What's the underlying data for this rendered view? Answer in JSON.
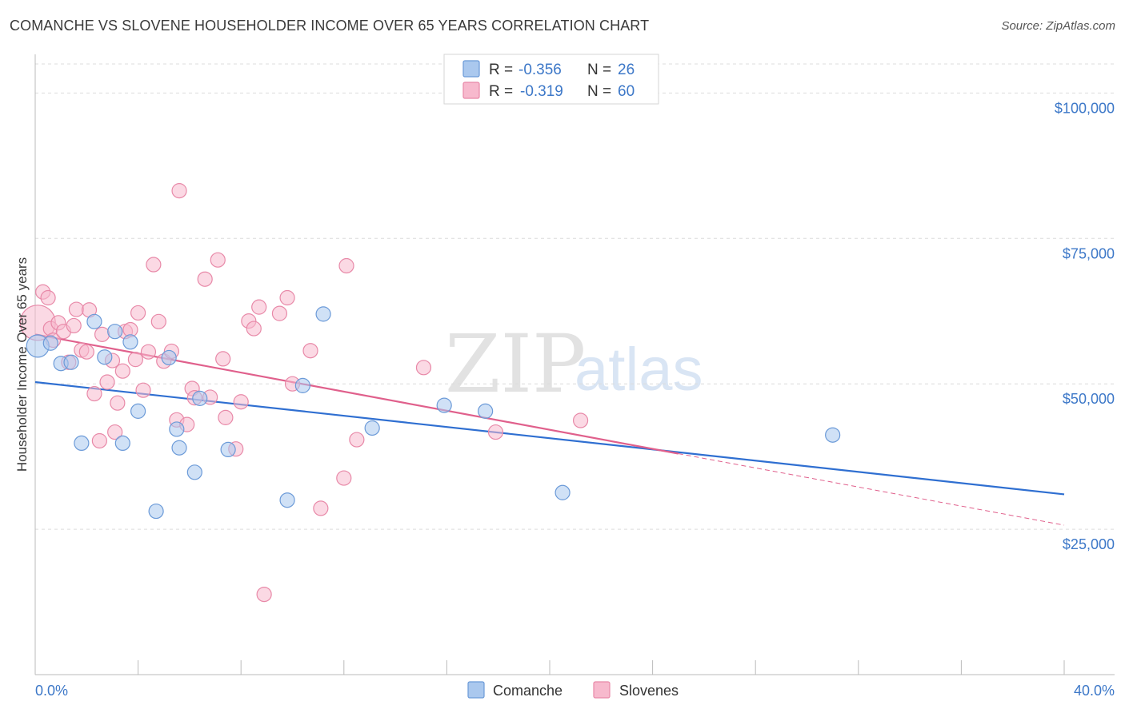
{
  "title": "COMANCHE VS SLOVENE HOUSEHOLDER INCOME OVER 65 YEARS CORRELATION CHART",
  "source": "Source: ZipAtlas.com",
  "watermark": {
    "zip": "ZIP",
    "atlas": "atlas"
  },
  "legend": {
    "rows": [
      {
        "r_label": "R =",
        "r_value": "-0.356",
        "n_label": "N =",
        "n_value": "26"
      },
      {
        "r_label": "R =",
        "r_value": "-0.319",
        "n_label": "N =",
        "n_value": "60"
      }
    ]
  },
  "bottom_legend": [
    "Comanche",
    "Slovenes"
  ],
  "colors": {
    "comanche_fill": "#aac8ee",
    "comanche_stroke": "#6b9ad8",
    "comanche_line": "#2f6fd1",
    "slovene_fill": "#f7b9cd",
    "slovene_stroke": "#e889a8",
    "slovene_line": "#e0608c",
    "grid": "#dcdcdc",
    "axis_text": "#3d78c8"
  },
  "chart_data": {
    "type": "scatter",
    "title": "COMANCHE VS SLOVENE HOUSEHOLDER INCOME OVER 65 YEARS CORRELATION CHART",
    "xlabel": "",
    "ylabel": "Householder Income Over 65 years",
    "xlim": [
      0,
      40
    ],
    "ylim": [
      0,
      105000
    ],
    "x_tick_labels": [
      "0.0%",
      "40.0%"
    ],
    "y_ticks": [
      25000,
      50000,
      75000,
      100000
    ],
    "y_tick_labels": [
      "$25,000",
      "$50,000",
      "$75,000",
      "$100,000"
    ],
    "grid": "horizontal dashed",
    "legend_position": "top-center",
    "series": [
      {
        "name": "Comanche",
        "r": -0.356,
        "n": 26,
        "trend": {
          "x": [
            0,
            40
          ],
          "y": [
            50300,
            31000
          ]
        },
        "points": [
          [
            0.1,
            56500,
            14
          ],
          [
            0.6,
            57000,
            9
          ],
          [
            1.0,
            53500,
            9
          ],
          [
            1.4,
            53700,
            9
          ],
          [
            1.8,
            39800,
            9
          ],
          [
            2.3,
            60700,
            9
          ],
          [
            2.7,
            54600,
            9
          ],
          [
            3.1,
            59000,
            9
          ],
          [
            3.4,
            39800,
            9
          ],
          [
            3.7,
            57200,
            9
          ],
          [
            4.0,
            45300,
            9
          ],
          [
            4.7,
            28100,
            9
          ],
          [
            5.2,
            54500,
            9
          ],
          [
            5.5,
            42200,
            9
          ],
          [
            5.6,
            39000,
            9
          ],
          [
            6.2,
            34800,
            9
          ],
          [
            6.4,
            47500,
            9
          ],
          [
            7.5,
            38700,
            9
          ],
          [
            9.8,
            30000,
            9
          ],
          [
            10.4,
            49700,
            9
          ],
          [
            11.2,
            62000,
            9
          ],
          [
            13.1,
            42400,
            9
          ],
          [
            15.9,
            46300,
            9
          ],
          [
            17.5,
            45300,
            9
          ],
          [
            20.5,
            31300,
            9
          ],
          [
            31.0,
            41200,
            9
          ]
        ]
      },
      {
        "name": "Slovenes",
        "r": -0.319,
        "n": 60,
        "trend": {
          "x": [
            0,
            25
          ],
          "y": [
            58500,
            38000
          ]
        },
        "trend_dashed": {
          "x": [
            25,
            40
          ],
          "y": [
            38000,
            25700
          ]
        },
        "points": [
          [
            0.1,
            60500,
            22
          ],
          [
            0.3,
            65800,
            9
          ],
          [
            0.5,
            64800,
            9
          ],
          [
            0.6,
            59500,
            9
          ],
          [
            0.7,
            57500,
            9
          ],
          [
            0.9,
            60500,
            9
          ],
          [
            1.1,
            59000,
            9
          ],
          [
            1.3,
            53700,
            9
          ],
          [
            1.5,
            60000,
            9
          ],
          [
            1.6,
            62800,
            9
          ],
          [
            1.8,
            55800,
            9
          ],
          [
            2.0,
            55500,
            9
          ],
          [
            2.1,
            62700,
            9
          ],
          [
            2.3,
            48300,
            9
          ],
          [
            2.5,
            40200,
            9
          ],
          [
            2.6,
            58500,
            9
          ],
          [
            2.8,
            50300,
            9
          ],
          [
            3.0,
            54000,
            9
          ],
          [
            3.1,
            41700,
            9
          ],
          [
            3.2,
            46700,
            9
          ],
          [
            3.4,
            52200,
            9
          ],
          [
            3.5,
            59000,
            9
          ],
          [
            3.7,
            59300,
            9
          ],
          [
            3.9,
            54200,
            9
          ],
          [
            4.0,
            62200,
            9
          ],
          [
            4.2,
            48900,
            9
          ],
          [
            4.4,
            55500,
            9
          ],
          [
            4.6,
            70500,
            9
          ],
          [
            4.8,
            60700,
            9
          ],
          [
            5.0,
            53900,
            9
          ],
          [
            5.3,
            55600,
            9
          ],
          [
            5.5,
            43800,
            9
          ],
          [
            5.6,
            83200,
            9
          ],
          [
            5.9,
            43000,
            9
          ],
          [
            6.1,
            49200,
            9
          ],
          [
            6.2,
            47600,
            9
          ],
          [
            6.6,
            68000,
            9
          ],
          [
            6.8,
            47700,
            9
          ],
          [
            7.1,
            71300,
            9
          ],
          [
            7.3,
            54300,
            9
          ],
          [
            7.4,
            44200,
            9
          ],
          [
            7.8,
            38800,
            9
          ],
          [
            8.0,
            46900,
            9
          ],
          [
            8.3,
            60800,
            9
          ],
          [
            8.5,
            59500,
            9
          ],
          [
            8.7,
            63200,
            9
          ],
          [
            8.9,
            13800,
            9
          ],
          [
            9.5,
            62100,
            9
          ],
          [
            9.8,
            64800,
            9
          ],
          [
            10.0,
            50000,
            9
          ],
          [
            10.7,
            55700,
            9
          ],
          [
            11.1,
            28600,
            9
          ],
          [
            12.0,
            33800,
            9
          ],
          [
            12.1,
            70300,
            9
          ],
          [
            12.5,
            40400,
            9
          ],
          [
            15.1,
            52800,
            9
          ],
          [
            17.9,
            41700,
            9
          ],
          [
            21.2,
            43700,
            9
          ]
        ]
      }
    ]
  }
}
